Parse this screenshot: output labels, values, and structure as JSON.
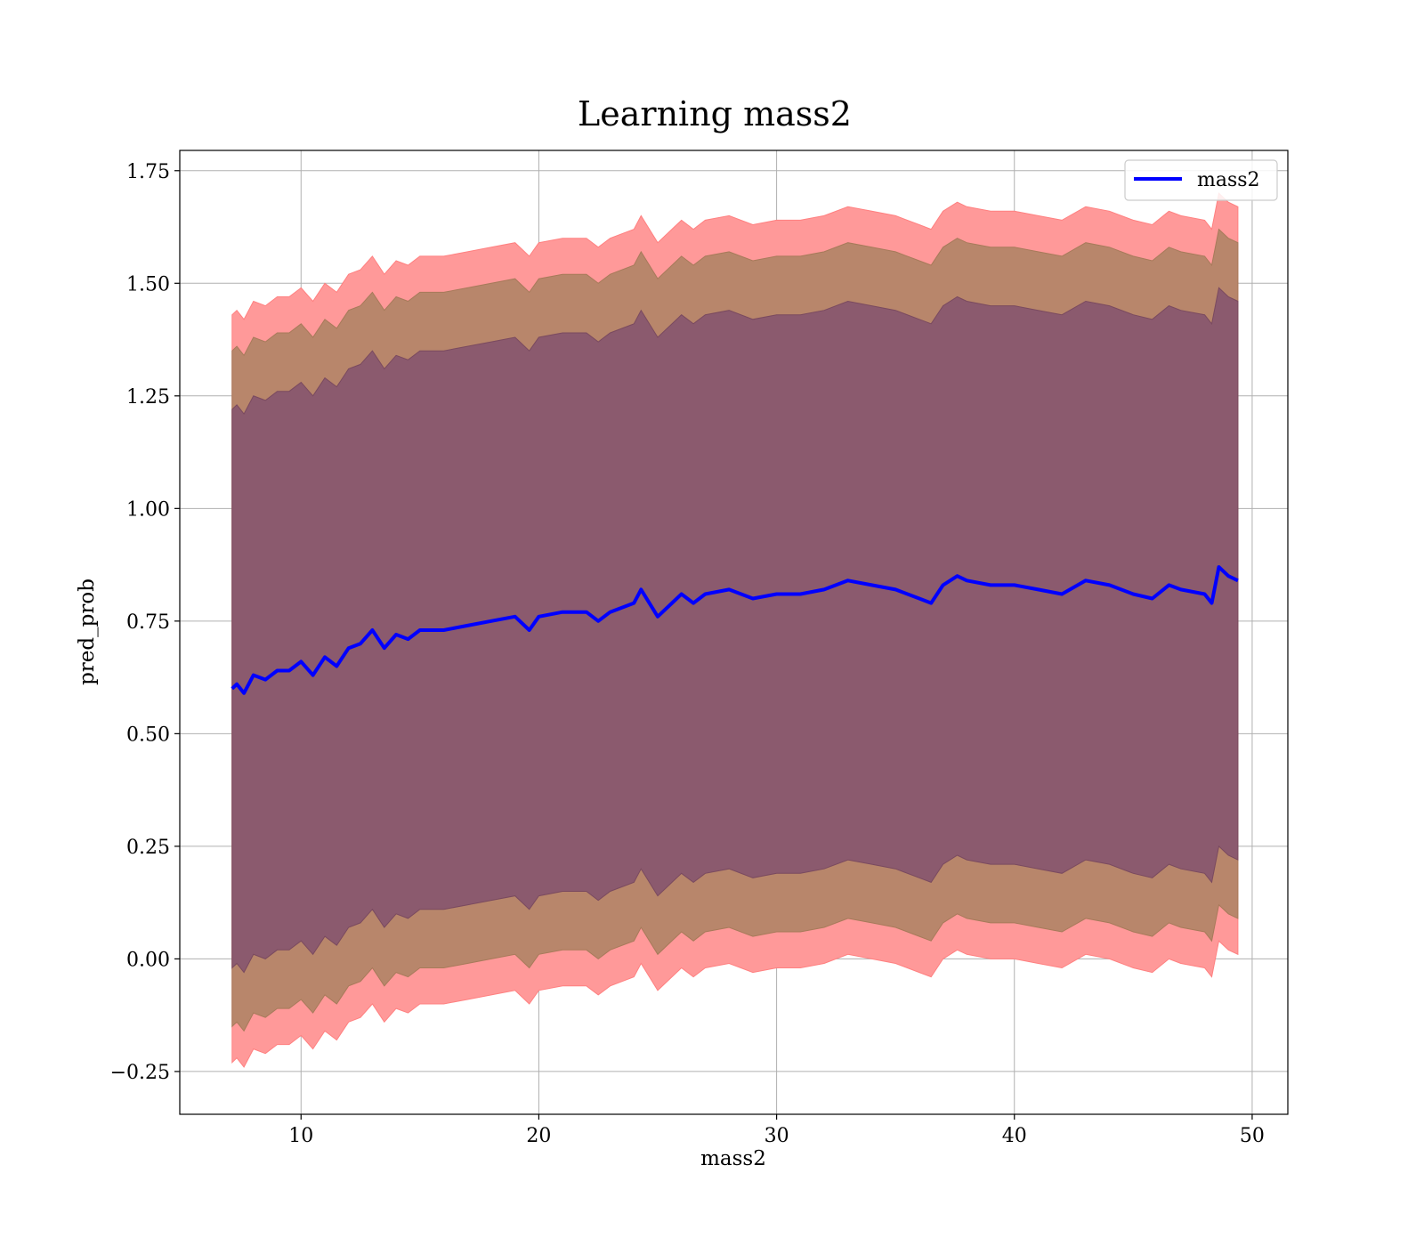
{
  "chart_data": {
    "type": "area",
    "title": "Learning mass2",
    "xlabel": "mass2",
    "ylabel": "pred_prob",
    "xlim": [
      4.9,
      51.5
    ],
    "ylim": [
      -0.345,
      1.795
    ],
    "x_ticks": [
      10,
      20,
      30,
      40,
      50
    ],
    "x_tick_labels": [
      "10",
      "20",
      "30",
      "40",
      "50"
    ],
    "y_ticks": [
      -0.25,
      0.0,
      0.25,
      0.5,
      0.75,
      1.0,
      1.25,
      1.5,
      1.75
    ],
    "y_tick_labels": [
      "−0.25",
      "0.00",
      "0.25",
      "0.50",
      "0.75",
      "1.00",
      "1.25",
      "1.50",
      "1.75"
    ],
    "grid": true,
    "legend": {
      "position": "top-right",
      "entries": [
        "mass2"
      ]
    },
    "colors": {
      "line": "#0000ff",
      "band_outer": "#ff9999",
      "band_middle": "#b8866b",
      "band_inner": "#8b5a6e"
    },
    "bands_offset_from_line": {
      "inner": 0.62,
      "middle": 0.75,
      "outer": 0.83
    },
    "series": [
      {
        "name": "mass2",
        "x": [
          7.1,
          7.3,
          7.6,
          8,
          8.5,
          9,
          9.5,
          10,
          10.5,
          11,
          11.5,
          12,
          12.5,
          13,
          13.5,
          14,
          14.5,
          15,
          16,
          17,
          18,
          19,
          19.6,
          20,
          21,
          22,
          22.5,
          23,
          24,
          24.3,
          25,
          26,
          26.5,
          27,
          28,
          29,
          30,
          31,
          32,
          33,
          34,
          35,
          36,
          36.5,
          37,
          37.6,
          38,
          39,
          40,
          41,
          42,
          43,
          44,
          45,
          45.8,
          46.5,
          47,
          48,
          48.3,
          48.6,
          49,
          49.4
        ],
        "values": [
          0.6,
          0.61,
          0.59,
          0.63,
          0.62,
          0.64,
          0.64,
          0.66,
          0.63,
          0.67,
          0.65,
          0.69,
          0.7,
          0.73,
          0.69,
          0.72,
          0.71,
          0.73,
          0.73,
          0.74,
          0.75,
          0.76,
          0.73,
          0.76,
          0.77,
          0.77,
          0.75,
          0.77,
          0.79,
          0.82,
          0.76,
          0.81,
          0.79,
          0.81,
          0.82,
          0.8,
          0.81,
          0.81,
          0.82,
          0.84,
          0.83,
          0.82,
          0.8,
          0.79,
          0.83,
          0.85,
          0.84,
          0.83,
          0.83,
          0.82,
          0.81,
          0.84,
          0.83,
          0.81,
          0.8,
          0.83,
          0.82,
          0.81,
          0.79,
          0.87,
          0.85,
          0.84
        ]
      }
    ]
  }
}
